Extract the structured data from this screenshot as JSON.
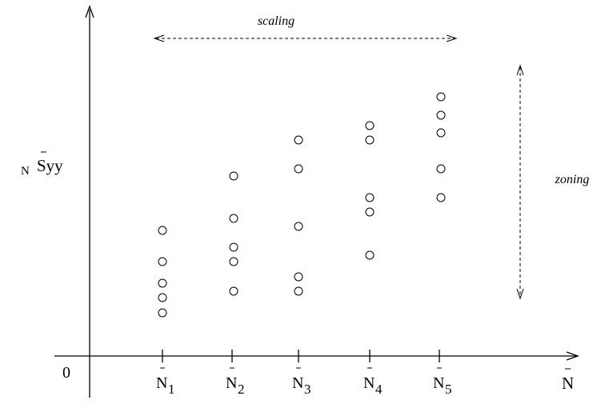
{
  "axes": {
    "origin": "0",
    "x_label": "N",
    "y_label": {
      "subscript": "N",
      "main": "Syy"
    }
  },
  "x_ticks": [
    {
      "letter": "N",
      "index": "1"
    },
    {
      "letter": "N",
      "index": "2"
    },
    {
      "letter": "N",
      "index": "3"
    },
    {
      "letter": "N",
      "index": "4"
    },
    {
      "letter": "N",
      "index": "5"
    }
  ],
  "annotations": {
    "horizontal": "scaling",
    "vertical": "zoning"
  }
}
